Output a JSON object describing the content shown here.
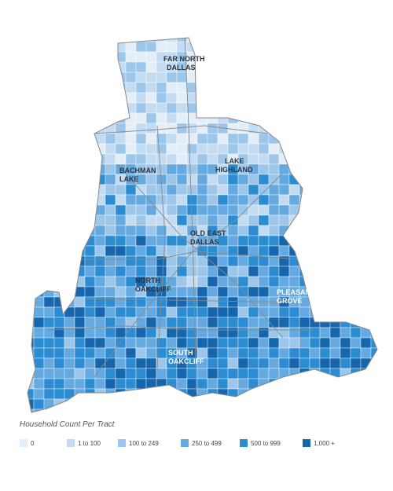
{
  "map": {
    "labels": [
      {
        "lines": [
          "FAR NORTH",
          "DALLAS"
        ]
      },
      {
        "lines": [
          "BACHMAN",
          "LAKE"
        ]
      },
      {
        "lines": [
          "LAKE",
          "HIGHLAND"
        ]
      },
      {
        "lines": [
          "OLD EAST",
          "DALLAS"
        ]
      },
      {
        "lines": [
          "NORTH",
          "OAKCLIFF"
        ]
      },
      {
        "lines": [
          "PLEASANT",
          "GROVE"
        ]
      },
      {
        "lines": [
          "SOUTH",
          "OAKCLIFF"
        ]
      }
    ]
  },
  "legend": {
    "title": "Household Count Per Tract",
    "items": [
      {
        "label": "0",
        "color": "#e4eef9"
      },
      {
        "label": "1 to 100",
        "color": "#c3dcf2"
      },
      {
        "label": "100 to 249",
        "color": "#9cc6ea"
      },
      {
        "label": "250 to 499",
        "color": "#64a9df"
      },
      {
        "label": "500 to 999",
        "color": "#2b8cd2"
      },
      {
        "label": "1,000 +",
        "color": "#1666ae"
      }
    ]
  }
}
